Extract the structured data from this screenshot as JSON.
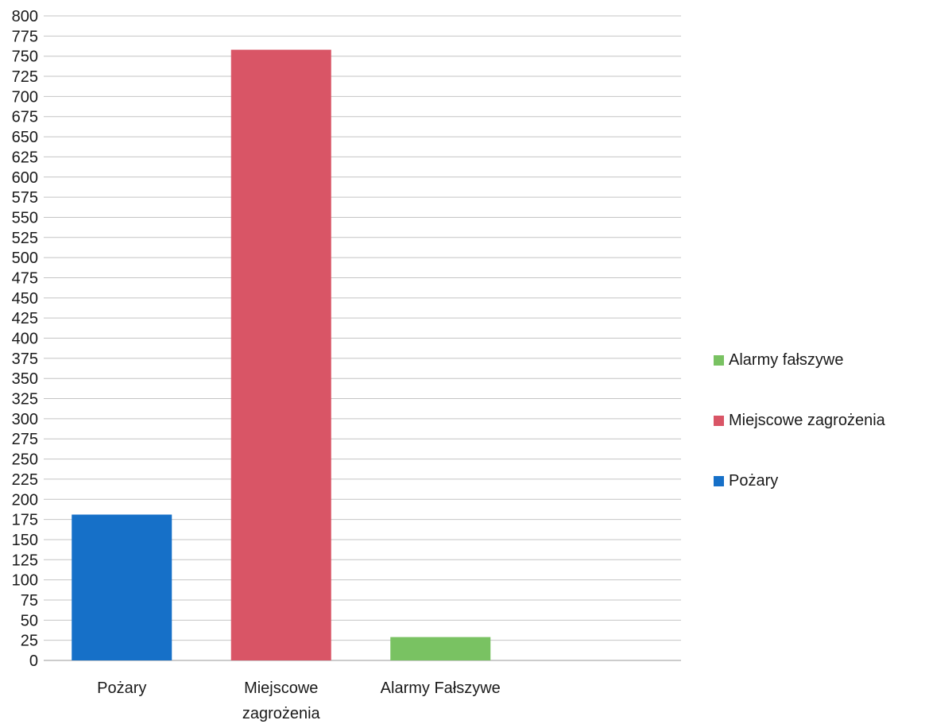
{
  "chart_data": {
    "type": "bar",
    "categories": [
      "Pożary",
      "Miejscowe zagrożenia",
      "Alarmy Fałszywe"
    ],
    "category_label_lines": [
      [
        "Pożary"
      ],
      [
        "Miejscowe",
        "zagrożenia"
      ],
      [
        "Alarmy Fałszywe"
      ]
    ],
    "values": [
      181,
      758,
      29
    ],
    "bar_colors": [
      "#1670c8",
      "#d95566",
      "#79c262"
    ],
    "ylim": [
      0,
      800
    ],
    "yticks": [
      0,
      25,
      50,
      75,
      100,
      125,
      150,
      175,
      200,
      225,
      250,
      275,
      300,
      325,
      350,
      375,
      400,
      425,
      450,
      475,
      500,
      525,
      550,
      575,
      600,
      625,
      650,
      675,
      700,
      725,
      750,
      775,
      800
    ],
    "grid": true,
    "legend_position": "right",
    "legend": [
      {
        "label": "Alarmy fałszywe",
        "color": "#79c262"
      },
      {
        "label": "Miejscowe zagrożenia",
        "color": "#d95566"
      },
      {
        "label": "Pożary",
        "color": "#1670c8"
      }
    ],
    "title": "",
    "xlabel": "",
    "ylabel": ""
  }
}
